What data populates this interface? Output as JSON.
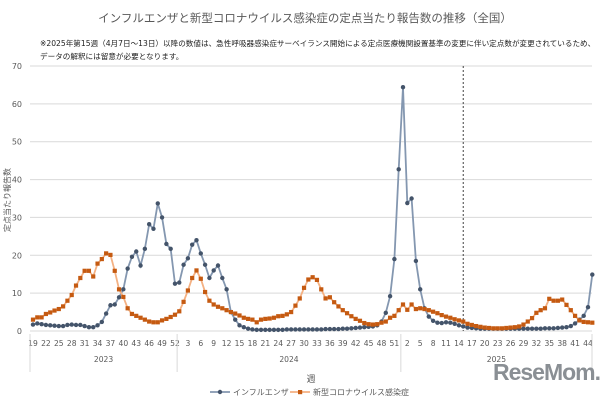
{
  "chart_data": {
    "type": "line",
    "title": "インフルエンザと新型コロナウイルス感染症の定点当たり報告数の推移（全国）",
    "notes": [
      "※2025年第15週（4月7日～13日）以降の数値は、急性呼吸器感染症サーベイランス開始による定点医療機関設置基準の変更に伴い定点数が変更されているため、",
      "データの解釈には留意が必要となります。"
    ],
    "xlabel": "週",
    "ylabel": "定点当たり報告数",
    "ylim": [
      0,
      70
    ],
    "yticks": [
      0,
      10,
      20,
      30,
      40,
      50,
      60,
      70
    ],
    "grid": true,
    "legend_position": "bottom",
    "year_groups": [
      {
        "label": "2023",
        "from_week": 19,
        "to_week": 52
      },
      {
        "label": "2024",
        "from_week": 1,
        "to_week": 52
      },
      {
        "label": "2025",
        "from_week": 1,
        "to_week": 44
      }
    ],
    "marker_line": {
      "year": "2025",
      "week": 15,
      "style": "dashed"
    },
    "series": [
      {
        "name": "インフルエンザ",
        "color": "#44546a",
        "marker": "circle",
        "values": [
          1.7,
          2.0,
          1.8,
          1.6,
          1.5,
          1.4,
          1.3,
          1.3,
          1.6,
          1.7,
          1.6,
          1.6,
          1.3,
          1.0,
          1.0,
          1.5,
          2.4,
          4.6,
          6.8,
          7.0,
          8.9,
          11.0,
          16.5,
          19.6,
          21.0,
          17.3,
          21.7,
          28.2,
          27.0,
          33.7,
          30.0,
          23.0,
          21.7,
          12.5,
          12.8,
          17.5,
          19.2,
          22.8,
          24.0,
          20.5,
          17.5,
          14.0,
          16.0,
          17.3,
          14.0,
          11.0,
          5.0,
          3.0,
          1.5,
          1.0,
          0.6,
          0.4,
          0.3,
          0.3,
          0.3,
          0.3,
          0.3,
          0.3,
          0.3,
          0.4,
          0.4,
          0.4,
          0.4,
          0.4,
          0.4,
          0.4,
          0.4,
          0.4,
          0.5,
          0.5,
          0.5,
          0.5,
          0.6,
          0.6,
          0.7,
          0.8,
          0.9,
          1.0,
          1.1,
          1.2,
          1.5,
          2.5,
          4.8,
          9.2,
          19.0,
          42.7,
          64.4,
          33.8,
          35.0,
          18.5,
          11.0,
          6.0,
          3.8,
          2.7,
          2.2,
          2.1,
          2.3,
          2.2,
          1.9,
          1.5,
          1.2,
          0.9,
          0.8,
          0.7,
          0.6,
          0.6,
          0.6,
          0.6,
          0.6,
          0.6,
          0.6,
          0.6,
          0.6,
          0.6,
          0.6,
          0.6,
          0.6,
          0.6,
          0.6,
          0.7,
          0.7,
          0.7,
          0.8,
          0.9,
          1.0,
          1.3,
          2.0,
          3.0,
          4.0,
          6.3,
          14.9
        ]
      },
      {
        "name": "新型コロナウイルス感染症",
        "color": "#c55a11",
        "marker": "square",
        "values": [
          3.0,
          3.6,
          3.6,
          4.5,
          4.9,
          5.4,
          5.8,
          6.5,
          8.0,
          9.5,
          12.0,
          14.0,
          15.9,
          15.9,
          14.4,
          17.8,
          19.0,
          20.5,
          20.1,
          15.9,
          11.0,
          9.0,
          6.0,
          4.5,
          4.0,
          3.5,
          3.0,
          2.5,
          2.3,
          2.3,
          2.8,
          3.2,
          3.7,
          4.3,
          5.2,
          7.7,
          10.7,
          14.0,
          16.0,
          13.8,
          10.3,
          8.0,
          7.0,
          6.4,
          6.0,
          5.5,
          5.0,
          4.6,
          4.1,
          3.5,
          3.2,
          3.0,
          2.3,
          3.0,
          3.2,
          3.3,
          3.5,
          3.9,
          4.0,
          4.4,
          5.0,
          6.7,
          8.6,
          11.4,
          13.6,
          14.2,
          13.5,
          11.0,
          8.6,
          8.9,
          7.6,
          6.5,
          5.5,
          4.7,
          3.9,
          3.2,
          2.7,
          2.1,
          1.8,
          1.7,
          1.8,
          2.2,
          2.5,
          3.5,
          4.0,
          5.5,
          7.0,
          5.6,
          7.0,
          5.8,
          6.0,
          5.8,
          5.5,
          5.1,
          4.7,
          4.2,
          3.8,
          3.5,
          3.1,
          2.8,
          2.5,
          1.9,
          1.6,
          1.3,
          1.1,
          0.9,
          0.8,
          0.7,
          0.7,
          0.7,
          0.8,
          0.9,
          1.0,
          1.2,
          1.7,
          2.5,
          3.4,
          4.8,
          5.5,
          6.0,
          8.5,
          8.0,
          8.0,
          8.3,
          6.9,
          5.5,
          4.0,
          2.8,
          2.4,
          2.3,
          2.2
        ]
      }
    ]
  },
  "logo": "ReseMom"
}
